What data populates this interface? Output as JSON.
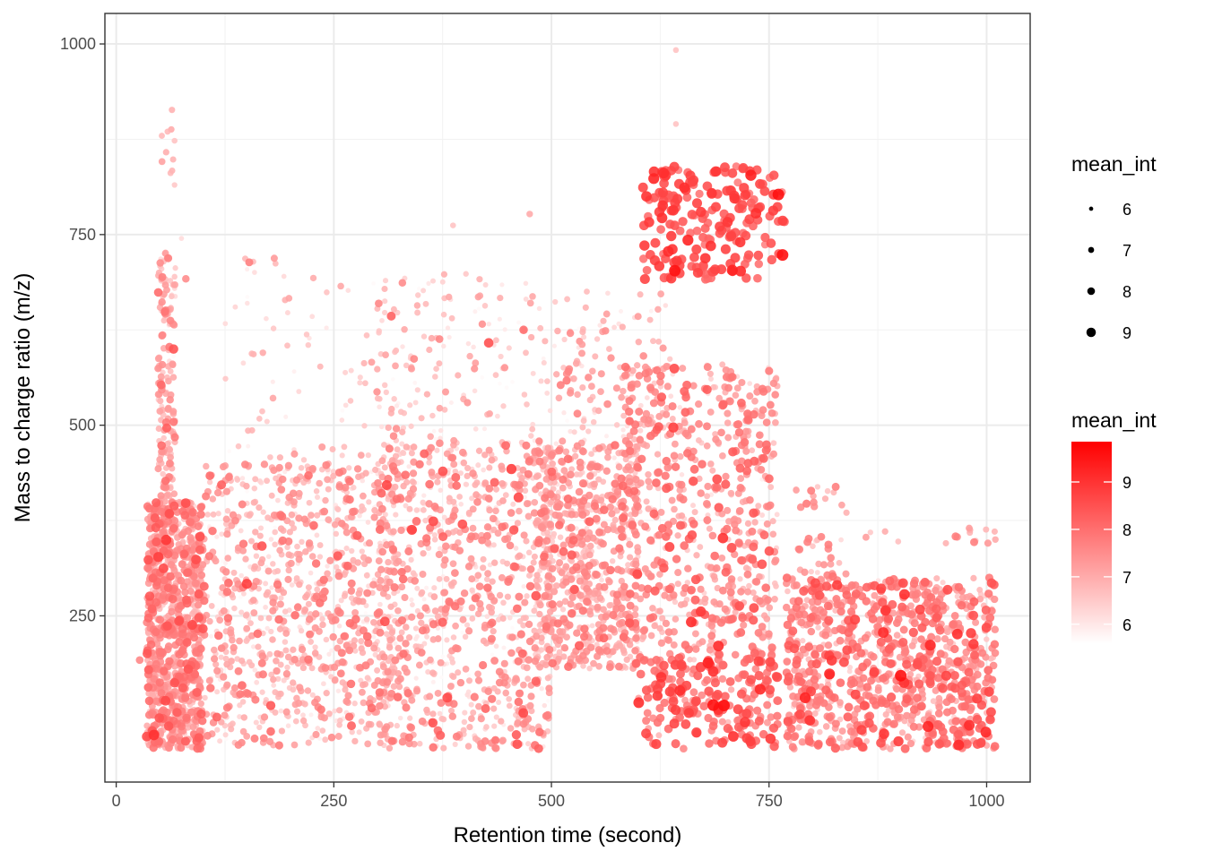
{
  "chart_data": {
    "type": "scatter",
    "xlabel": "Retention time (second)",
    "ylabel": "Mass to charge ratio (m/z)",
    "xlim": [
      -13,
      1050
    ],
    "ylim": [
      32,
      1040
    ],
    "x_ticks": [
      0,
      250,
      500,
      750,
      1000
    ],
    "y_ticks": [
      250,
      500,
      750,
      1000
    ],
    "x_tick_labels": [
      "0",
      "250",
      "500",
      "750",
      "1000"
    ],
    "y_tick_labels": [
      "250",
      "500",
      "750",
      "1000"
    ],
    "grid": true,
    "color_scale": {
      "low": "#ffffff",
      "high": "#ff0000",
      "domain": [
        5.6,
        9.85
      ]
    },
    "size_legend": {
      "title": "mean_int",
      "placement": "right",
      "breaks": [
        6,
        7,
        8,
        9
      ],
      "labels": [
        "6",
        "7",
        "8",
        "9"
      ]
    },
    "color_legend": {
      "title": "mean_int",
      "placement": "right",
      "breaks": [
        6,
        7,
        8,
        9
      ],
      "labels": [
        "6",
        "7",
        "8",
        "9"
      ]
    },
    "clusters": [
      {
        "x": [
          35,
          100
        ],
        "y": [
          75,
          400
        ],
        "n": 900,
        "mean": 7.3,
        "sd": 0.55
      },
      {
        "x": [
          48,
          68
        ],
        "y": [
          400,
          730
        ],
        "n": 160,
        "mean": 7.0,
        "sd": 0.5
      },
      {
        "x": [
          52,
          66
        ],
        "y": [
          820,
          925
        ],
        "n": 10,
        "mean": 6.9,
        "sd": 0.3
      },
      {
        "x": [
          100,
          320
        ],
        "y": [
          80,
          450
        ],
        "n": 900,
        "mean": 6.9,
        "sd": 0.55
      },
      {
        "x": [
          120,
          330
        ],
        "y": [
          450,
          720
        ],
        "n": 90,
        "mean": 6.6,
        "sd": 0.5
      },
      {
        "x": [
          300,
          500
        ],
        "y": [
          75,
          480
        ],
        "n": 900,
        "mean": 7.0,
        "sd": 0.6
      },
      {
        "x": [
          300,
          500
        ],
        "y": [
          480,
          700
        ],
        "n": 140,
        "mean": 6.6,
        "sd": 0.5
      },
      {
        "x": [
          480,
          600
        ],
        "y": [
          180,
          480
        ],
        "n": 700,
        "mean": 7.0,
        "sd": 0.5
      },
      {
        "x": [
          500,
          640
        ],
        "y": [
          480,
          680
        ],
        "n": 120,
        "mean": 6.7,
        "sd": 0.5
      },
      {
        "x": [
          600,
          760
        ],
        "y": [
          75,
          200
        ],
        "n": 220,
        "mean": 7.9,
        "sd": 0.6
      },
      {
        "x": [
          580,
          760
        ],
        "y": [
          200,
          580
        ],
        "n": 650,
        "mean": 7.3,
        "sd": 0.6
      },
      {
        "x": [
          605,
          770
        ],
        "y": [
          690,
          840
        ],
        "n": 200,
        "mean": 8.4,
        "sd": 0.4
      },
      {
        "x": [
          770,
          1010
        ],
        "y": [
          75,
          300
        ],
        "n": 950,
        "mean": 7.5,
        "sd": 0.6
      },
      {
        "x": [
          780,
          840
        ],
        "y": [
          300,
          420
        ],
        "n": 40,
        "mean": 7.2,
        "sd": 0.5
      },
      {
        "x": [
          860,
          1010
        ],
        "y": [
          345,
          365
        ],
        "n": 14,
        "mean": 7.1,
        "sd": 0.4
      }
    ],
    "isolated_points": [
      {
        "x": 643,
        "y": 992,
        "v": 6.6
      },
      {
        "x": 643,
        "y": 895,
        "v": 6.6
      },
      {
        "x": 67,
        "y": 873,
        "v": 6.6
      },
      {
        "x": 67,
        "y": 815,
        "v": 6.5
      },
      {
        "x": 475,
        "y": 777,
        "v": 7.0
      },
      {
        "x": 387,
        "y": 762,
        "v": 6.6
      },
      {
        "x": 75,
        "y": 745,
        "v": 6.2
      },
      {
        "x": 183,
        "y": 712,
        "v": 6.7
      },
      {
        "x": 80,
        "y": 692,
        "v": 7.5
      },
      {
        "x": 316,
        "y": 643,
        "v": 8.2
      },
      {
        "x": 428,
        "y": 608,
        "v": 8.5
      },
      {
        "x": 468,
        "y": 625,
        "v": 8.0
      },
      {
        "x": 640,
        "y": 497,
        "v": 8.8
      },
      {
        "x": 697,
        "y": 352,
        "v": 9.0
      },
      {
        "x": 27,
        "y": 192,
        "v": 7.6
      },
      {
        "x": 980,
        "y": 365,
        "v": 7.2
      },
      {
        "x": 1010,
        "y": 350,
        "v": 7.0
      },
      {
        "x": 1000,
        "y": 80,
        "v": 7.0
      }
    ]
  }
}
